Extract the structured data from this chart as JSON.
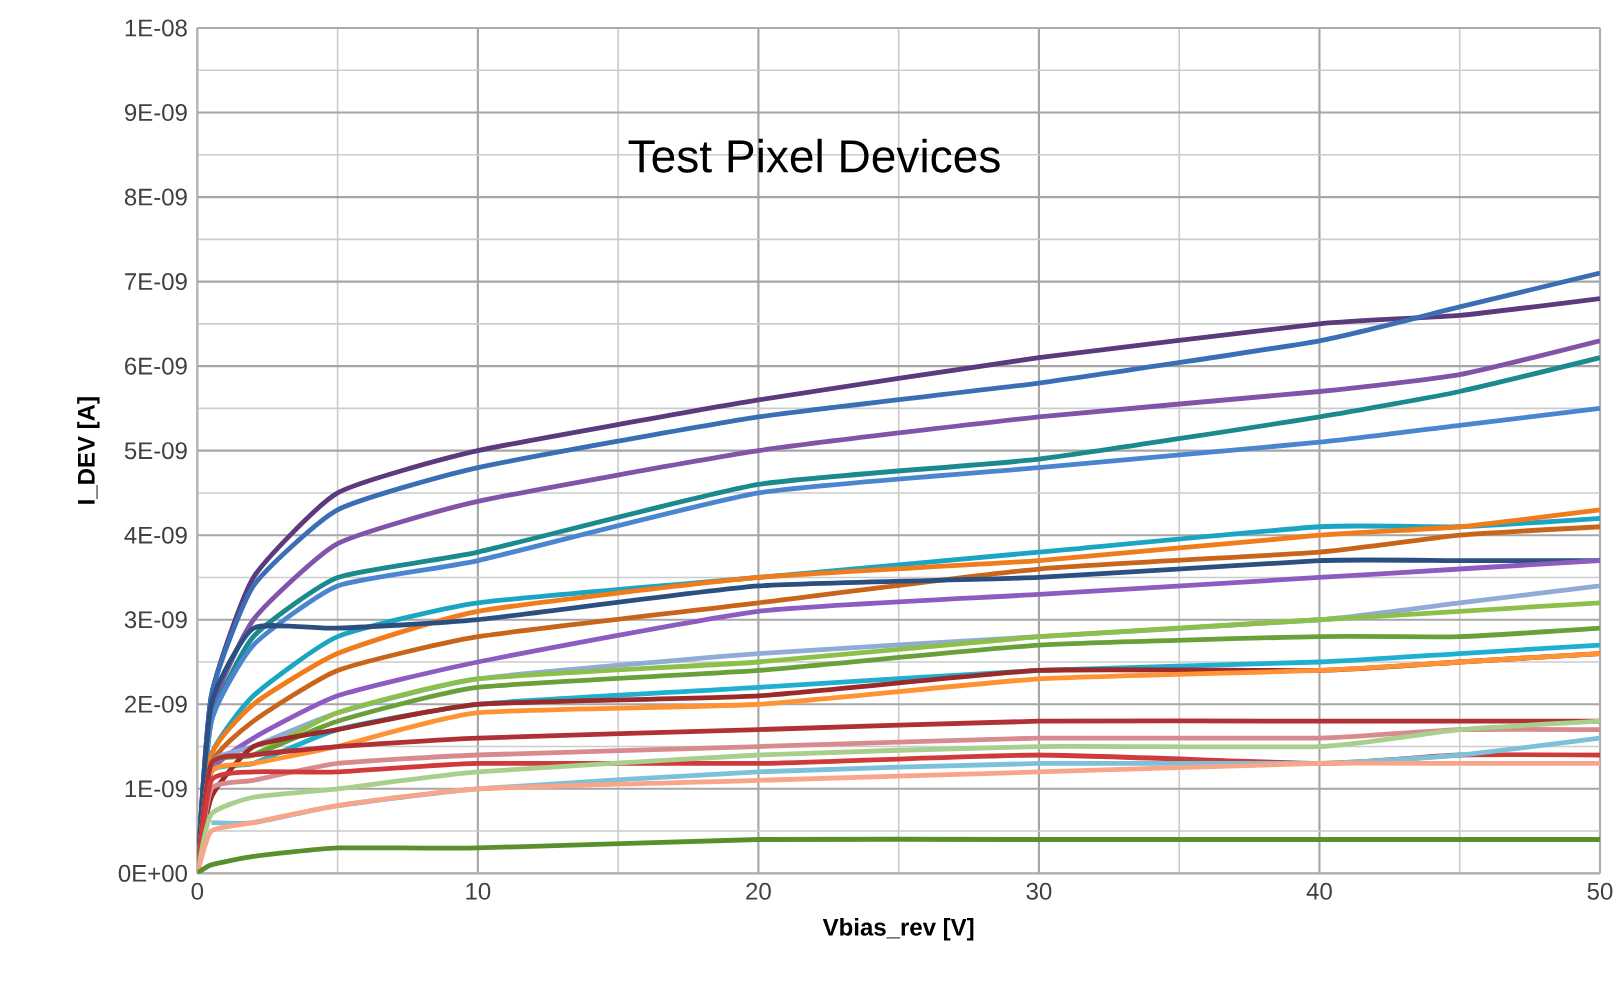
{
  "chart_data": {
    "type": "line",
    "title": "Test Pixel Devices",
    "xlabel": "Vbias_rev [V]",
    "ylabel": "I_DEV [A]",
    "x": [
      0,
      0.5,
      2,
      5,
      10,
      20,
      30,
      40,
      45,
      50
    ],
    "xlim": [
      0,
      50
    ],
    "xticks": [
      0,
      10,
      20,
      30,
      40,
      50
    ],
    "ylim": [
      0,
      1e-08
    ],
    "yticks": [
      {
        "value": 0,
        "label": "0E+00"
      },
      {
        "value": 1e-09,
        "label": "1E-09"
      },
      {
        "value": 2e-09,
        "label": "2E-09"
      },
      {
        "value": 3e-09,
        "label": "3E-09"
      },
      {
        "value": 4e-09,
        "label": "4E-09"
      },
      {
        "value": 5e-09,
        "label": "5E-09"
      },
      {
        "value": 6e-09,
        "label": "6E-09"
      },
      {
        "value": 7e-09,
        "label": "7E-09"
      },
      {
        "value": 8e-09,
        "label": "8E-09"
      },
      {
        "value": 9e-09,
        "label": "9E-09"
      },
      {
        "value": 1e-08,
        "label": "1E-08"
      }
    ],
    "grid": true,
    "marker": "none",
    "line_style": "solid",
    "series": [
      {
        "color": "#5b3a7e",
        "values": [
          0,
          2.1e-09,
          3.5e-09,
          4.5e-09,
          5e-09,
          5.6e-09,
          6.1e-09,
          6.5e-09,
          6.6e-09,
          6.8e-09
        ]
      },
      {
        "color": "#3a6fb5",
        "values": [
          0,
          2.1e-09,
          3.4e-09,
          4.3e-09,
          4.8e-09,
          5.4e-09,
          5.8e-09,
          6.3e-09,
          6.7e-09,
          7.1e-09
        ]
      },
      {
        "color": "#8253a8",
        "values": [
          0,
          1.9e-09,
          3e-09,
          3.9e-09,
          4.4e-09,
          5e-09,
          5.4e-09,
          5.7e-09,
          5.9e-09,
          6.3e-09
        ]
      },
      {
        "color": "#1b8a8e",
        "values": [
          0,
          1.8e-09,
          2.8e-09,
          3.5e-09,
          3.8e-09,
          4.6e-09,
          4.9e-09,
          5.4e-09,
          5.7e-09,
          6.1e-09
        ]
      },
      {
        "color": "#4a86d0",
        "values": [
          0,
          1.8e-09,
          2.7e-09,
          3.4e-09,
          3.7e-09,
          4.5e-09,
          4.8e-09,
          5.1e-09,
          5.3e-09,
          5.5e-09
        ]
      },
      {
        "color": "#1aa6c2",
        "values": [
          0,
          1.4e-09,
          2.1e-09,
          2.8e-09,
          3.2e-09,
          3.5e-09,
          3.8e-09,
          4.1e-09,
          4.1e-09,
          4.2e-09
        ]
      },
      {
        "color": "#f07c1b",
        "values": [
          0,
          1.4e-09,
          2e-09,
          2.6e-09,
          3.1e-09,
          3.5e-09,
          3.7e-09,
          4e-09,
          4.1e-09,
          4.3e-09
        ]
      },
      {
        "color": "#c8651a",
        "values": [
          0,
          1.3e-09,
          1.8e-09,
          2.4e-09,
          2.8e-09,
          3.2e-09,
          3.6e-09,
          3.8e-09,
          4e-09,
          4.1e-09
        ]
      },
      {
        "color": "#2a4f80",
        "values": [
          0,
          2e-09,
          2.9e-09,
          2.9e-09,
          3e-09,
          3.4e-09,
          3.5e-09,
          3.7e-09,
          3.7e-09,
          3.7e-09
        ]
      },
      {
        "color": "#8e5cc0",
        "values": [
          0,
          1.2e-09,
          1.6e-09,
          2.1e-09,
          2.5e-09,
          3.1e-09,
          3.3e-09,
          3.5e-09,
          3.6e-09,
          3.7e-09
        ]
      },
      {
        "color": "#8fabd6",
        "values": [
          0,
          1.3e-09,
          1.5e-09,
          1.9e-09,
          2.3e-09,
          2.6e-09,
          2.8e-09,
          3e-09,
          3.2e-09,
          3.4e-09
        ]
      },
      {
        "color": "#8dc04a",
        "values": [
          0,
          1.3e-09,
          1.4e-09,
          1.9e-09,
          2.3e-09,
          2.5e-09,
          2.8e-09,
          3e-09,
          3.1e-09,
          3.2e-09
        ]
      },
      {
        "color": "#6aa039",
        "values": [
          0,
          1.3e-09,
          1.4e-09,
          1.8e-09,
          2.2e-09,
          2.4e-09,
          2.7e-09,
          2.8e-09,
          2.8e-09,
          2.9e-09
        ]
      },
      {
        "color": "#1fb0d0",
        "values": [
          0,
          1.2e-09,
          1.3e-09,
          1.7e-09,
          2e-09,
          2.2e-09,
          2.4e-09,
          2.5e-09,
          2.6e-09,
          2.7e-09
        ]
      },
      {
        "color": "#9c2a2a",
        "values": [
          0,
          9e-10,
          1.5e-09,
          1.7e-09,
          2e-09,
          2.1e-09,
          2.4e-09,
          2.4e-09,
          2.5e-09,
          2.6e-09
        ]
      },
      {
        "color": "#ff9233",
        "values": [
          0,
          1.2e-09,
          1.3e-09,
          1.5e-09,
          1.9e-09,
          2e-09,
          2.3e-09,
          2.4e-09,
          2.5e-09,
          2.6e-09
        ]
      },
      {
        "color": "#b03035",
        "values": [
          0,
          1.3e-09,
          1.4e-09,
          1.5e-09,
          1.6e-09,
          1.7e-09,
          1.8e-09,
          1.8e-09,
          1.8e-09,
          1.8e-09
        ]
      },
      {
        "color": "#d98a8e",
        "values": [
          0,
          1e-09,
          1.1e-09,
          1.3e-09,
          1.4e-09,
          1.5e-09,
          1.6e-09,
          1.6e-09,
          1.7e-09,
          1.7e-09
        ]
      },
      {
        "color": "#d03a3a",
        "values": [
          0,
          1.1e-09,
          1.2e-09,
          1.2e-09,
          1.3e-09,
          1.3e-09,
          1.4e-09,
          1.3e-09,
          1.4e-09,
          1.4e-09
        ]
      },
      {
        "color": "#a8cf8b",
        "values": [
          0,
          7e-10,
          9e-10,
          1e-09,
          1.2e-09,
          1.4e-09,
          1.5e-09,
          1.5e-09,
          1.7e-09,
          1.8e-09
        ]
      },
      {
        "color": "#7cc0da",
        "values": [
          null,
          6e-10,
          6e-10,
          8e-10,
          1e-09,
          1.2e-09,
          1.3e-09,
          1.3e-09,
          1.4e-09,
          1.6e-09
        ]
      },
      {
        "color": "#f9a58a",
        "values": [
          0,
          5e-10,
          6e-10,
          8e-10,
          1e-09,
          1.1e-09,
          1.2e-09,
          1.3e-09,
          1.3e-09,
          1.3e-09
        ]
      },
      {
        "color": "#5a8f2e",
        "values": [
          0,
          1e-10,
          2e-10,
          3e-10,
          3e-10,
          4e-10,
          4e-10,
          4e-10,
          4e-10,
          4e-10
        ]
      }
    ]
  }
}
